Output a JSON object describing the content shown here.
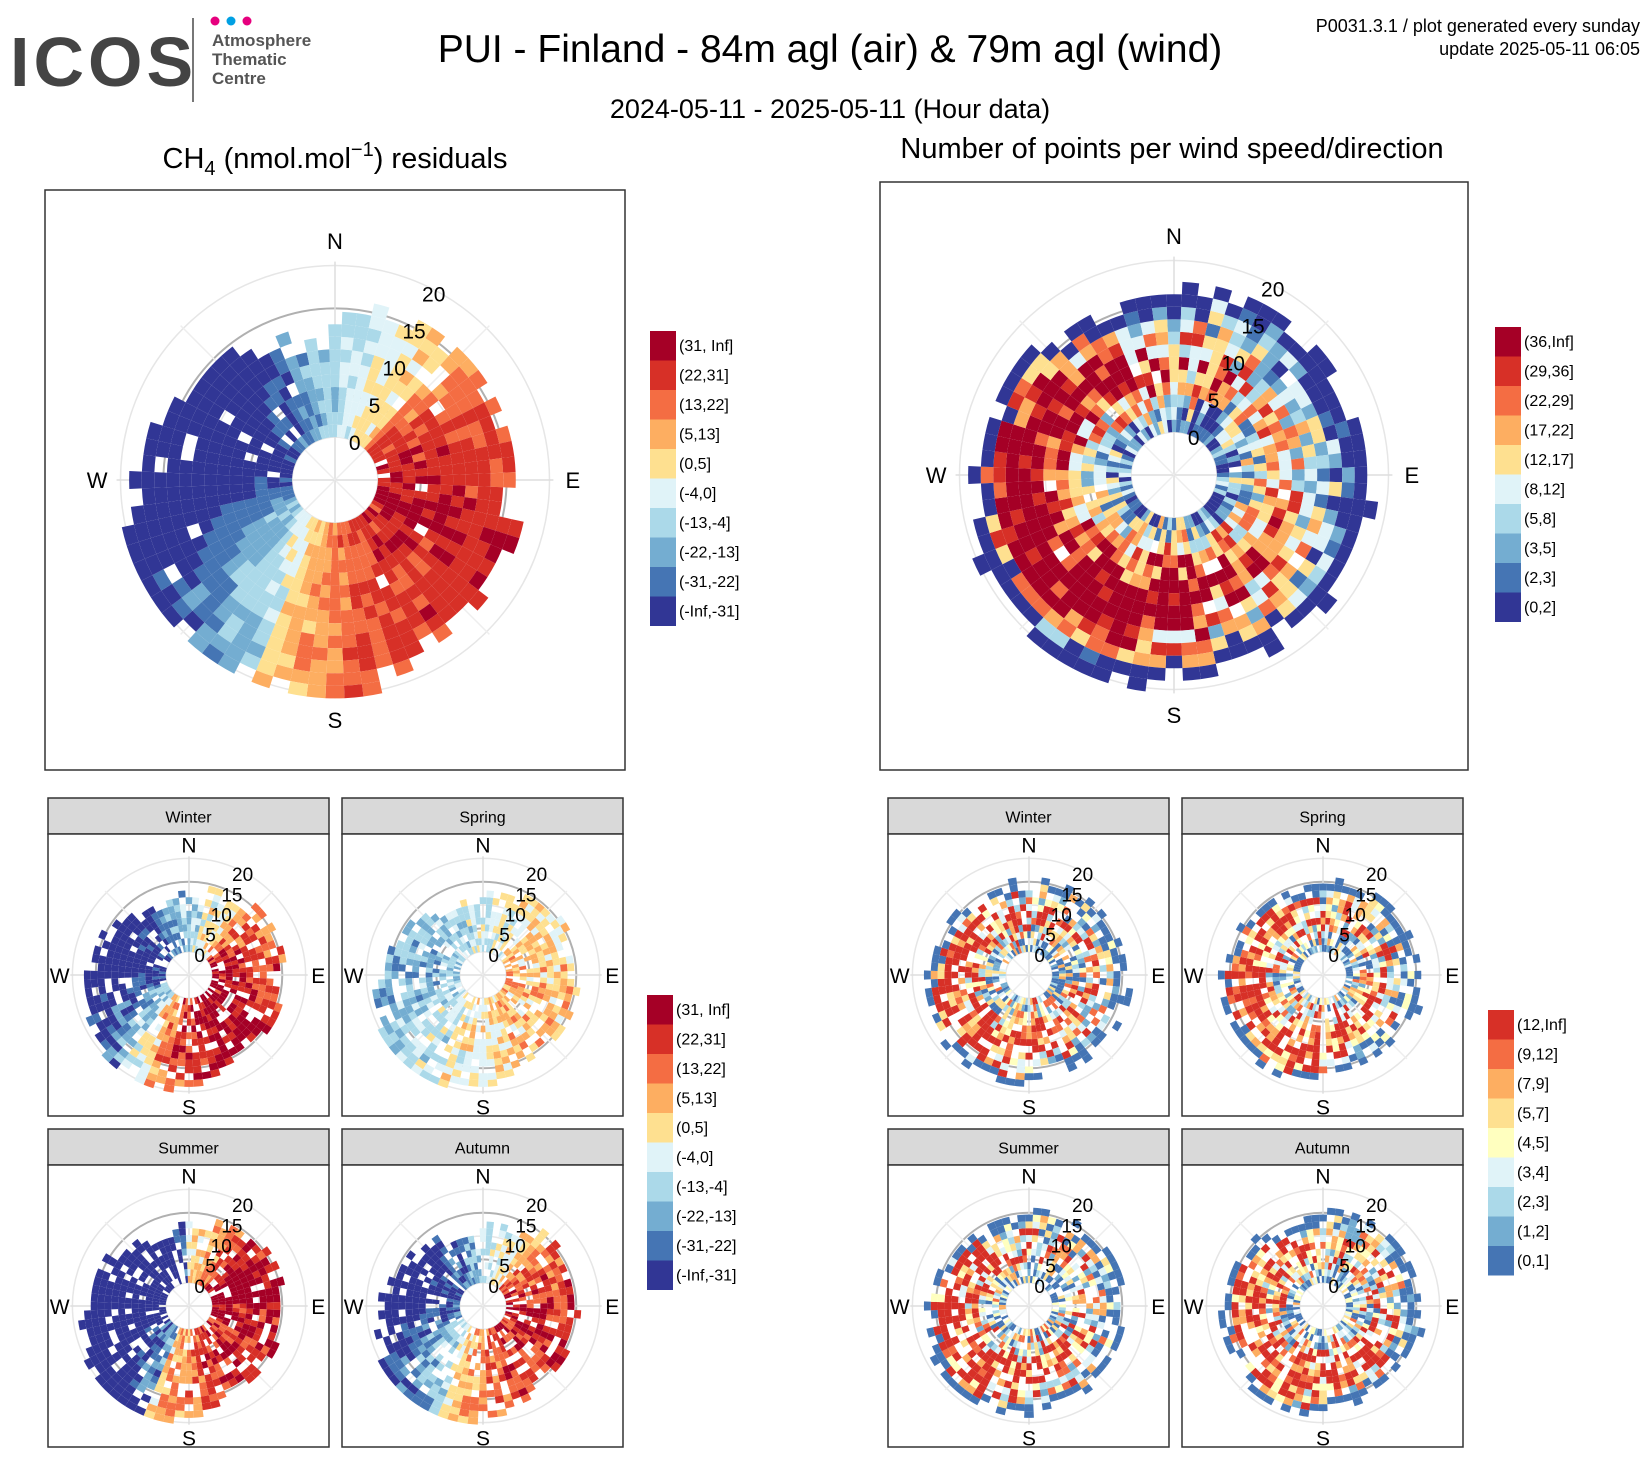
{
  "header": {
    "logo_text": "ICOS",
    "logo_sub": [
      "Atmosphere",
      "Thematic",
      "Centre"
    ],
    "title": "PUI - Finland - 84m agl (air) & 79m agl (wind)",
    "subtitle": "2024-05-11 - 2025-05-11 (Hour data)",
    "code": "P0031.3.1 / plot generated every sunday",
    "update": "update  2025-05-11 06:05"
  },
  "colors": {
    "scale": [
      "#a50026",
      "#d73027",
      "#f46d43",
      "#fdae61",
      "#fee090",
      "#e0f3f8",
      "#abd9e9",
      "#74add1",
      "#4575b4",
      "#313695"
    ],
    "scale9": [
      "#d73027",
      "#f46d43",
      "#fdae61",
      "#fee090",
      "#ffffbf",
      "#e0f3f8",
      "#abd9e9",
      "#74add1",
      "#4575b4"
    ],
    "logo_dots": [
      "#e6007e",
      "#00a0e3",
      "#e6007e"
    ]
  },
  "chart_data": [
    {
      "id": "resid_main",
      "type": "polar-heatmap",
      "title_main": "CH",
      "title_sub": "4",
      "title_mid": " (nmol.mol",
      "title_sup": "−1",
      "title_end": ") residuals",
      "directions": [
        "N",
        "E",
        "S",
        "W"
      ],
      "radial_ticks": [
        "0",
        "5",
        "10",
        "15",
        "20"
      ],
      "legend": [
        "(31, Inf]",
        "(22,31]",
        "(13,22]",
        "(5,13]",
        "(0,5]",
        "(-4,0]",
        "(-13,-4]",
        "(-22,-13]",
        "(-31,-22]",
        "(-Inf,-31]"
      ]
    },
    {
      "id": "count_main",
      "type": "polar-heatmap",
      "title": "Number of points per wind speed/direction",
      "directions": [
        "N",
        "E",
        "S",
        "W"
      ],
      "radial_ticks": [
        "0",
        "5",
        "10",
        "15",
        "20"
      ],
      "legend": [
        "(36,Inf]",
        "(29,36]",
        "(22,29]",
        "(17,22]",
        "(12,17]",
        "(8,12]",
        "(5,8]",
        "(3,5]",
        "(2,3]",
        "(0,2]"
      ]
    },
    {
      "id": "resid_seasons",
      "type": "polar-heatmap",
      "panels": [
        "Winter",
        "Spring",
        "Summer",
        "Autumn"
      ],
      "directions": [
        "N",
        "E",
        "S",
        "W"
      ],
      "radial_ticks": [
        "0",
        "5",
        "10",
        "15",
        "20"
      ],
      "legend": [
        "(31, Inf]",
        "(22,31]",
        "(13,22]",
        "(5,13]",
        "(0,5]",
        "(-4,0]",
        "(-13,-4]",
        "(-22,-13]",
        "(-31,-22]",
        "(-Inf,-31]"
      ]
    },
    {
      "id": "count_seasons",
      "type": "polar-heatmap",
      "panels": [
        "Winter",
        "Spring",
        "Summer",
        "Autumn"
      ],
      "directions": [
        "N",
        "E",
        "S",
        "W"
      ],
      "radial_ticks": [
        "0",
        "5",
        "10",
        "15",
        "20"
      ],
      "legend": [
        "(12,Inf]",
        "(9,12]",
        "(7,9]",
        "(5,7]",
        "(4,5]",
        "(3,4]",
        "(2,3]",
        "(1,2]",
        "(0,1]"
      ]
    }
  ]
}
